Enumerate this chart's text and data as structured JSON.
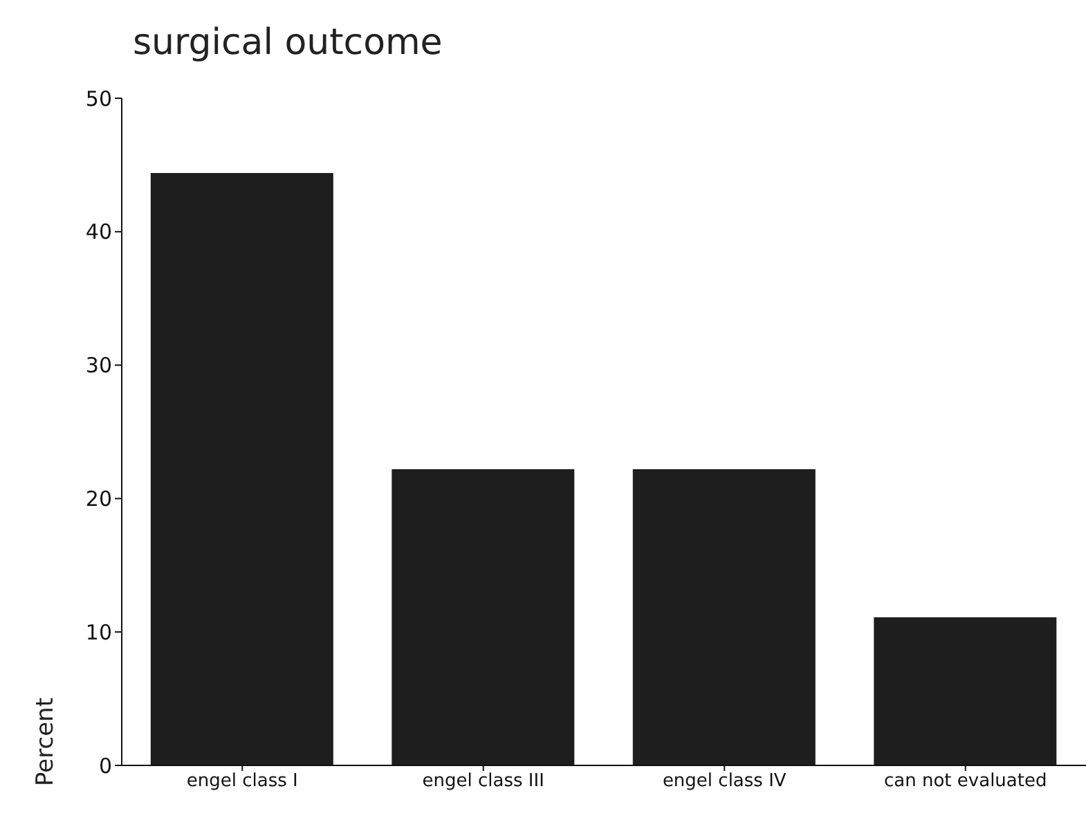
{
  "chart_data": {
    "type": "bar",
    "title": "surgical outcome",
    "ylabel": "Percent",
    "categories": [
      "engel class I",
      "engel class III",
      "engel class IV",
      "can not evaluated"
    ],
    "values": [
      44.4,
      22.2,
      22.2,
      11.1
    ],
    "color": "#1e1e1e",
    "ylim": [
      0,
      50
    ],
    "yticks": [
      0,
      10,
      20,
      30,
      40,
      50
    ],
    "grid": false,
    "legend": false
  }
}
